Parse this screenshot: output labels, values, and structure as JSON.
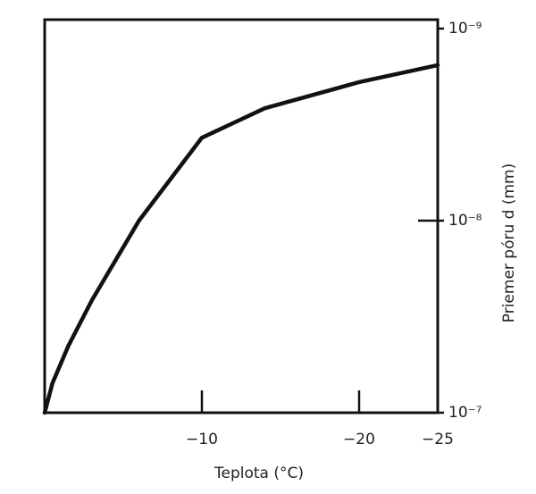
{
  "chart_data": {
    "type": "line",
    "xlabel": "Teplota (°C)",
    "ylabel": "Priemer póru d (mm)",
    "x": [
      0,
      -0.5,
      -1.5,
      -3,
      -6,
      -10,
      -14,
      -20,
      -25
    ],
    "series": [
      {
        "color": "#111111",
        "values": [
          1e-07,
          7e-08,
          4.5e-08,
          2.6e-08,
          1e-08,
          3.7e-09,
          2.6e-09,
          1.9e-09,
          1.55e-09
        ]
      }
    ],
    "xlim": [
      0,
      -25
    ],
    "xticks": [
      {
        "value": -10,
        "label": "−10"
      },
      {
        "value": -20,
        "label": "−20"
      },
      {
        "value": -25,
        "label": "−25"
      }
    ],
    "ylim": [
      1e-07,
      1e-09
    ],
    "yticks": [
      {
        "value": 1e-09,
        "label": "10⁻⁹"
      },
      {
        "value": 1e-08,
        "label": "10⁻⁸"
      },
      {
        "value": 1e-07,
        "label": "10⁻⁷"
      }
    ],
    "ylog": true
  }
}
